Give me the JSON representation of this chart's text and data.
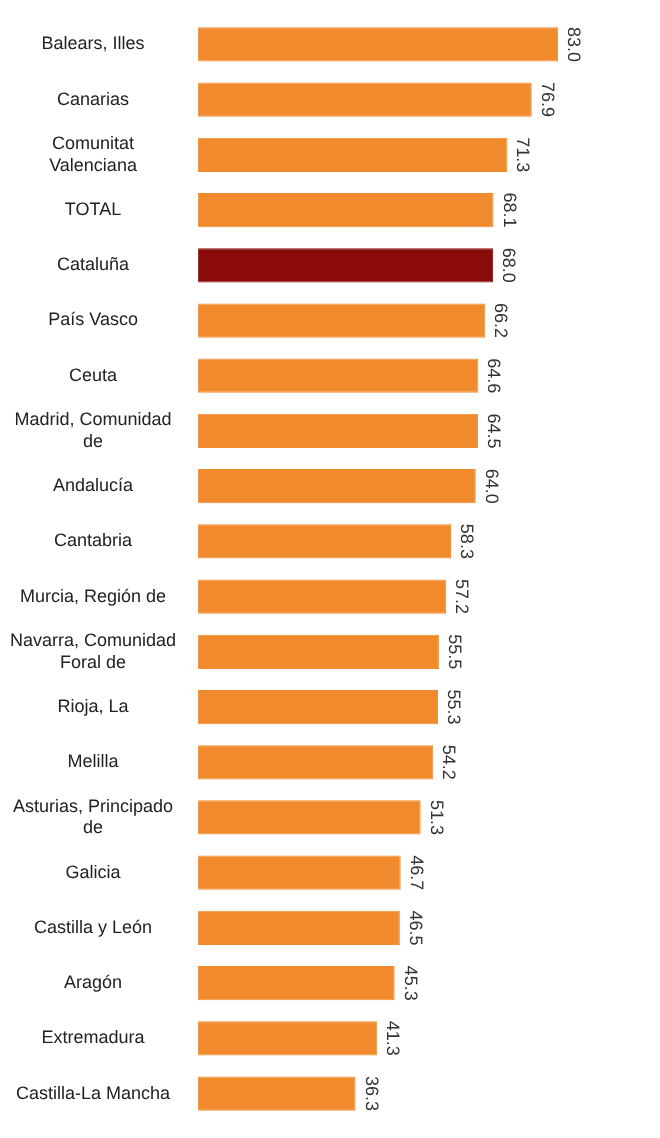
{
  "chart_data": {
    "type": "bar",
    "orientation": "horizontal",
    "value_labels": [
      "83.0",
      "76.9",
      "71.3",
      "68.1",
      "68.0",
      "66.2",
      "64.6",
      "64.5",
      "64.0",
      "58.3",
      "57.2",
      "55.5",
      "55.3",
      "54.2",
      "51.3",
      "46.7",
      "46.5",
      "45.3",
      "41.3",
      "36.3"
    ],
    "categories": [
      "Balears, Illes",
      "Canarias",
      "Comunitat Valenciana",
      "TOTAL",
      "Cataluña",
      "País Vasco",
      "Ceuta",
      "Madrid, Comunidad de",
      "Andalucía",
      "Cantabria",
      "Murcia, Región de",
      "Navarra, Comunidad Foral de",
      "Rioja, La",
      "Melilla",
      "Asturias, Principado de",
      "Galicia",
      "Castilla y León",
      "Aragón",
      "Extremadura",
      "Castilla-La Mancha"
    ],
    "values": [
      83.0,
      76.9,
      71.3,
      68.1,
      68.0,
      66.2,
      64.6,
      64.5,
      64.0,
      58.3,
      57.2,
      55.5,
      55.3,
      54.2,
      51.3,
      46.7,
      46.5,
      45.3,
      41.3,
      36.3
    ],
    "colors": [
      "#f08a2c",
      "#f08a2c",
      "#f08a2c",
      "#f08a2c",
      "#8b0a0a",
      "#f08a2c",
      "#f08a2c",
      "#f08a2c",
      "#f08a2c",
      "#f08a2c",
      "#f08a2c",
      "#f08a2c",
      "#f08a2c",
      "#f08a2c",
      "#f08a2c",
      "#f08a2c",
      "#f08a2c",
      "#f08a2c",
      "#f08a2c",
      "#f08a2c"
    ]
  }
}
